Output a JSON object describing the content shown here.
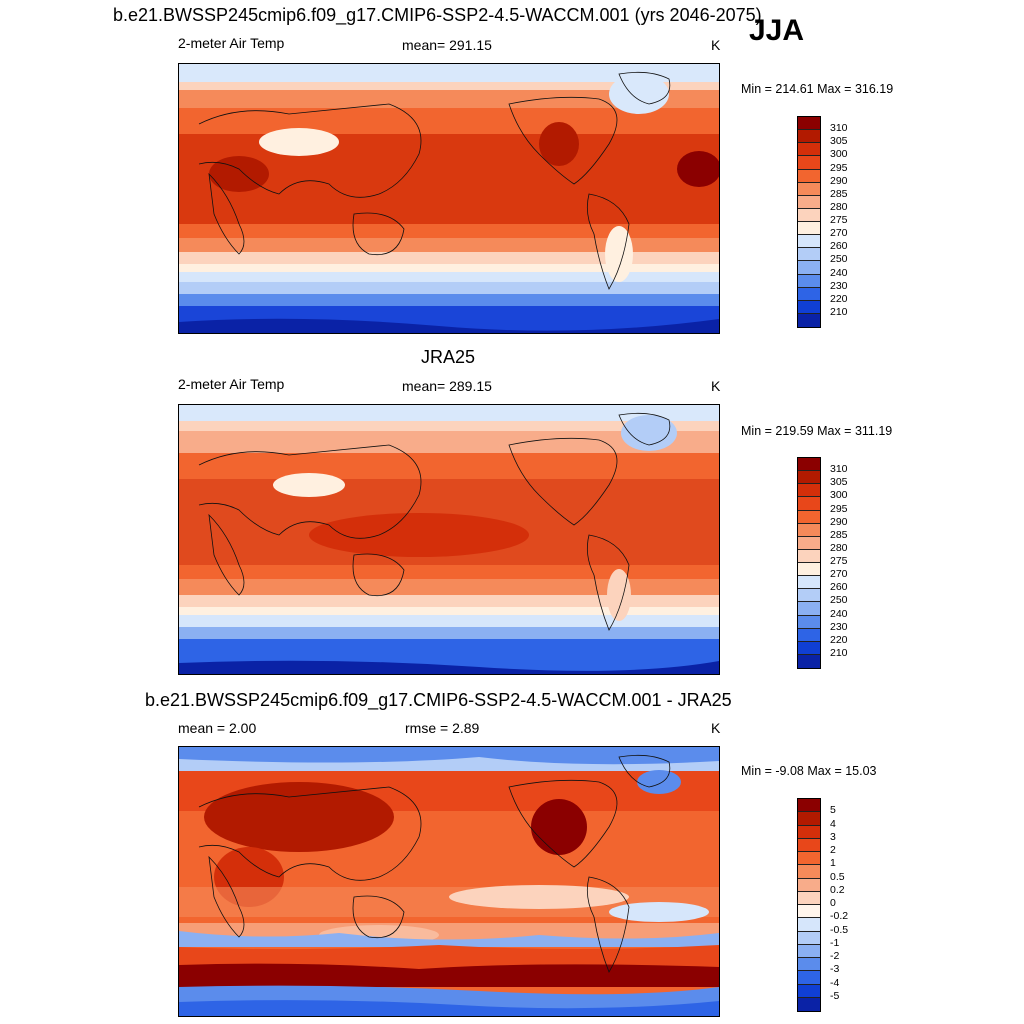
{
  "season": "JJA",
  "panels": [
    {
      "title": "b.e21.BWSSP245cmip6.f09_g17.CMIP6-SSP2-4.5-WACCM.001 (yrs 2046-2075)",
      "left_label": "2-meter Air Temp",
      "mid_label": "mean= 291.15",
      "units": "K",
      "minmax": "Min = 214.61 Max = 316.19",
      "colorbar": [
        "310",
        "305",
        "300",
        "295",
        "290",
        "285",
        "280",
        "275",
        "270",
        "260",
        "250",
        "240",
        "230",
        "220",
        "210"
      ]
    },
    {
      "title": "JRA25",
      "left_label": "2-meter Air Temp",
      "mid_label": "mean= 289.15",
      "units": "K",
      "minmax": "Min = 219.59 Max = 311.19",
      "colorbar": [
        "310",
        "305",
        "300",
        "295",
        "290",
        "285",
        "280",
        "275",
        "270",
        "260",
        "250",
        "240",
        "230",
        "220",
        "210"
      ]
    },
    {
      "title": "b.e21.BWSSP245cmip6.f09_g17.CMIP6-SSP2-4.5-WACCM.001 - JRA25",
      "left_label": "mean =   2.00",
      "mid_label": "rmse =   2.89",
      "units": "K",
      "minmax": "Min =  -9.08 Max =  15.03",
      "colorbar": [
        "5",
        "4",
        "3",
        "2",
        "1",
        "0.5",
        "0.2",
        "0",
        "-0.2",
        "-0.5",
        "-1",
        "-2",
        "-3",
        "-4",
        "-5"
      ]
    }
  ],
  "colors": {
    "abs_scale": [
      "#8b0000",
      "#b21a00",
      "#d42f0a",
      "#e8471a",
      "#f2652f",
      "#f58a5a",
      "#f8ac8a",
      "#fcd3bd",
      "#fff0e0",
      "#d6e6fb",
      "#b3cdf7",
      "#8bb0f2",
      "#5b8cec",
      "#2e64e6",
      "#103fd4",
      "#0a22a6",
      "#000080"
    ],
    "diff_scale": [
      "#8b0000",
      "#b21a00",
      "#d42f0a",
      "#e8471a",
      "#f2652f",
      "#f58a5a",
      "#f8ac8a",
      "#fcd3bd",
      "#fff5ec",
      "#d6e6fb",
      "#b3cdf7",
      "#8bb0f2",
      "#5b8cec",
      "#2e64e6",
      "#103fd4",
      "#0a22a6",
      "#000080"
    ]
  }
}
